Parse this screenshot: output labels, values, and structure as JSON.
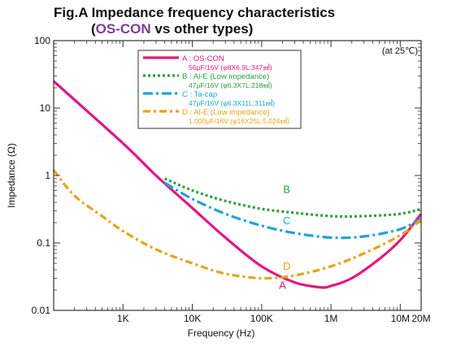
{
  "title": {
    "line1": "Fig.A Impedance frequency characteristics",
    "line2_open": "(",
    "line2_accent": "OS-CON",
    "line2_rest": " vs other types)"
  },
  "colors": {
    "A": "#e0197d",
    "B": "#2f9e3e",
    "C": "#1fa3dc",
    "D": "#e8a317",
    "accent": "#7b3d99",
    "axis": "#333333"
  },
  "chart_data": {
    "type": "line",
    "x_scale": "log",
    "y_scale": "log",
    "xlim": [
      100,
      20000000
    ],
    "ylim": [
      0.01,
      100
    ],
    "xlabel": "Frequency  (Hz)",
    "ylabel": "Impedance  (Ω)",
    "annotation": "(at 25℃)",
    "x_ticks": [
      {
        "v": 1000,
        "label": "1K"
      },
      {
        "v": 10000,
        "label": "10K"
      },
      {
        "v": 100000,
        "label": "100K"
      },
      {
        "v": 1000000,
        "label": "1M"
      },
      {
        "v": 10000000,
        "label": "10M"
      },
      {
        "v": 20000000,
        "label": "20M"
      }
    ],
    "y_ticks": [
      {
        "v": 100,
        "label": "100"
      },
      {
        "v": 10,
        "label": "10"
      },
      {
        "v": 1,
        "label": "1"
      },
      {
        "v": 0.1,
        "label": "0.1"
      },
      {
        "v": 0.01,
        "label": "0.01"
      }
    ],
    "legend": {
      "placement": "top-center",
      "entries": [
        {
          "key": "A",
          "line1": "A : OS-CON",
          "line2": "56μF/16V  (φ8X6.9L:347㎣)"
        },
        {
          "key": "B",
          "line1": "B : Al-E  (Low impedance)",
          "line2": "47μF/16V  (φ6.3X7L:218㎣)"
        },
        {
          "key": "C",
          "line1": "C : Ta-cap",
          "line2": "47μF/16V  (φ6.3X11L:311㎣)"
        },
        {
          "key": "D",
          "line1": "D : Al-E  (Low impedance)",
          "line2": "1,000μF/16V  (φ16X25L:5,024㎣)"
        }
      ]
    },
    "series": [
      {
        "key": "A",
        "label": "A",
        "style": "solid",
        "label_at": [
          200000,
          0.021
        ],
        "points": [
          [
            100,
            25
          ],
          [
            1000,
            3.0
          ],
          [
            3000,
            1.0
          ],
          [
            10000,
            0.33
          ],
          [
            30000,
            0.12
          ],
          [
            100000,
            0.045
          ],
          [
            300000,
            0.026
          ],
          [
            700000,
            0.022
          ],
          [
            1000000,
            0.023
          ],
          [
            2000000,
            0.03
          ],
          [
            5000000,
            0.058
          ],
          [
            10000000,
            0.11
          ],
          [
            20000000,
            0.27
          ]
        ]
      },
      {
        "key": "B",
        "label": "B",
        "style": "dotted",
        "label_at": [
          230000,
          0.55
        ],
        "points": [
          [
            4000,
            0.9
          ],
          [
            10000,
            0.6
          ],
          [
            30000,
            0.42
          ],
          [
            100000,
            0.32
          ],
          [
            300000,
            0.28
          ],
          [
            1000000,
            0.25
          ],
          [
            3000000,
            0.25
          ],
          [
            10000000,
            0.27
          ],
          [
            20000000,
            0.32
          ]
        ]
      },
      {
        "key": "C",
        "label": "C",
        "style": "dashdot",
        "label_at": [
          230000,
          0.19
        ],
        "points": [
          [
            4000,
            0.78
          ],
          [
            10000,
            0.45
          ],
          [
            30000,
            0.27
          ],
          [
            100000,
            0.18
          ],
          [
            300000,
            0.14
          ],
          [
            1000000,
            0.12
          ],
          [
            3000000,
            0.125
          ],
          [
            10000000,
            0.16
          ],
          [
            20000000,
            0.23
          ]
        ]
      },
      {
        "key": "D",
        "label": "D",
        "style": "dashdot2",
        "label_at": [
          230000,
          0.04
        ],
        "points": [
          [
            100,
            1.2
          ],
          [
            200,
            0.5
          ],
          [
            500,
            0.25
          ],
          [
            1000,
            0.15
          ],
          [
            3000,
            0.08
          ],
          [
            10000,
            0.05
          ],
          [
            30000,
            0.035
          ],
          [
            100000,
            0.03
          ],
          [
            300000,
            0.033
          ],
          [
            1000000,
            0.045
          ],
          [
            3000000,
            0.07
          ],
          [
            10000000,
            0.13
          ],
          [
            20000000,
            0.22
          ]
        ]
      }
    ]
  }
}
